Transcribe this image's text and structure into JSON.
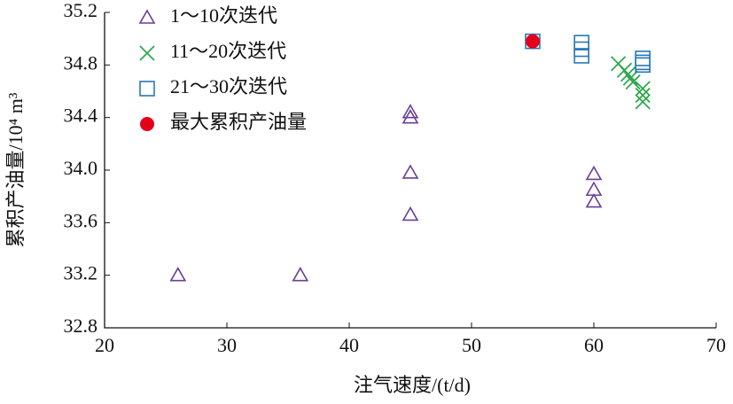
{
  "chart_data": {
    "type": "scatter",
    "xlabel": "注气速度/(t/d)",
    "ylabel": "累积产油量/10⁴ m³",
    "xlim": [
      20,
      70
    ],
    "xticks": [
      20,
      30,
      40,
      50,
      60,
      70
    ],
    "ylim": [
      32.8,
      35.2
    ],
    "yticks": [
      32.8,
      33.2,
      33.6,
      {
        "value": 34,
        "label": "34.0"
      },
      34.4,
      34.8,
      35.2
    ],
    "legend": "upper left",
    "series": [
      {
        "name": "1～10次迭代",
        "color": "#6b3f95",
        "marker": "triangle",
        "x": [
          26,
          36,
          45,
          45,
          45,
          45,
          60,
          60,
          60
        ],
        "values": [
          33.2,
          33.2,
          34.44,
          34.4,
          33.98,
          33.66,
          33.97,
          33.85,
          33.76
        ]
      },
      {
        "name": "11～20次迭代",
        "color": "#2fa84f",
        "marker": "x",
        "x": [
          62,
          62.5,
          62.8,
          63,
          63.2,
          64,
          64,
          64
        ],
        "values": [
          34.81,
          34.76,
          34.73,
          34.7,
          34.67,
          34.62,
          34.57,
          34.52
        ]
      },
      {
        "name": "21～30次迭代",
        "color": "#2878b8",
        "marker": "square",
        "x": [
          55,
          59,
          59,
          59,
          64,
          64,
          64
        ],
        "values": [
          34.98,
          34.97,
          34.92,
          34.87,
          34.85,
          34.82,
          34.8
        ]
      },
      {
        "name": "最大累积产油量",
        "color": "#e3001b",
        "marker": "circle",
        "x": [
          55
        ],
        "values": [
          34.98
        ]
      }
    ]
  }
}
